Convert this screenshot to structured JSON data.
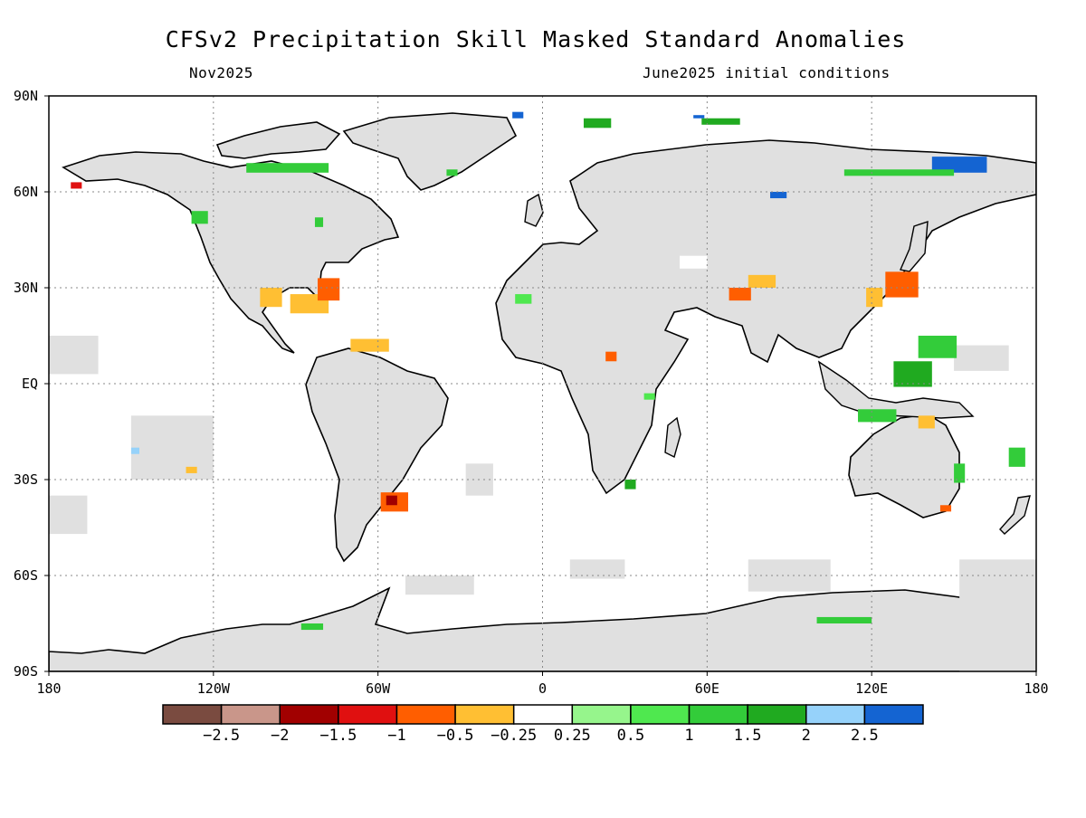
{
  "title": "CFSv2 Precipitation Skill Masked Standard Anomalies",
  "valid_label": "Nov2025",
  "init_label": "June2025 initial conditions",
  "map": {
    "lon_range": [
      -180,
      180
    ],
    "lat_range": [
      -90,
      90
    ],
    "x_ticks": [
      {
        "value": -180,
        "label": "180"
      },
      {
        "value": -120,
        "label": "120W"
      },
      {
        "value": -60,
        "label": "60W"
      },
      {
        "value": 0,
        "label": "0"
      },
      {
        "value": 60,
        "label": "60E"
      },
      {
        "value": 120,
        "label": "120E"
      },
      {
        "value": 180,
        "label": "180"
      }
    ],
    "y_ticks": [
      {
        "value": 90,
        "label": "90N"
      },
      {
        "value": 60,
        "label": "60N"
      },
      {
        "value": 30,
        "label": "30N"
      },
      {
        "value": 0,
        "label": "EQ"
      },
      {
        "value": -30,
        "label": "30S"
      },
      {
        "value": -60,
        "label": "60S"
      },
      {
        "value": -90,
        "label": "90S"
      }
    ],
    "grid": true,
    "masked_color": "#e0e0e0",
    "coastline_color": "#000000"
  },
  "colorbar": {
    "colors": [
      "#7a4b40",
      "#c9968a",
      "#a10000",
      "#e01010",
      "#ff5e00",
      "#ffbf33",
      "#ffffff",
      "#96f58c",
      "#4fe84f",
      "#33cc3a",
      "#20aa20",
      "#96d2fa",
      "#1464d2"
    ],
    "labels": [
      "-2.5",
      "-2",
      "-1.5",
      "-1",
      "-0.5",
      "-0.25",
      "0.25",
      "0.5",
      "1",
      "1.5",
      "2",
      "2.5"
    ]
  },
  "anomalies": [
    {
      "lon": -92,
      "lat": 28,
      "w": 14,
      "h": 6,
      "value": -0.5
    },
    {
      "lon": -82,
      "lat": 33,
      "w": 8,
      "h": 7,
      "value": -1.0
    },
    {
      "lon": -103,
      "lat": 30,
      "w": 8,
      "h": 6,
      "value": -0.5
    },
    {
      "lon": -70,
      "lat": 14,
      "w": 14,
      "h": 4,
      "value": -0.5
    },
    {
      "lon": -59,
      "lat": -34,
      "w": 10,
      "h": 6,
      "value": -1.0
    },
    {
      "lon": -57,
      "lat": -35,
      "w": 4,
      "h": 3,
      "value": -2.0
    },
    {
      "lon": -172,
      "lat": 63,
      "w": 4,
      "h": 2,
      "value": -1.5
    },
    {
      "lon": -130,
      "lat": -26,
      "w": 4,
      "h": 2,
      "value": -0.5
    },
    {
      "lon": -128,
      "lat": 54,
      "w": 6,
      "h": 4,
      "value": 1.0
    },
    {
      "lon": -108,
      "lat": 69,
      "w": 30,
      "h": 3,
      "value": 1.0
    },
    {
      "lon": -83,
      "lat": 52,
      "w": 3,
      "h": 3,
      "value": 1.0
    },
    {
      "lon": 15,
      "lat": 83,
      "w": 10,
      "h": 3,
      "value": 1.5
    },
    {
      "lon": 58,
      "lat": 83,
      "w": 14,
      "h": 2,
      "value": 1.5
    },
    {
      "lon": 55,
      "lat": 84,
      "w": 4,
      "h": 1,
      "value": 2.5
    },
    {
      "lon": 142,
      "lat": 71,
      "w": 20,
      "h": 5,
      "value": 2.5
    },
    {
      "lon": 83,
      "lat": 60,
      "w": 6,
      "h": 2,
      "value": 2.5
    },
    {
      "lon": -11,
      "lat": 85,
      "w": 4,
      "h": 2,
      "value": 2.5
    },
    {
      "lon": -35,
      "lat": 67,
      "w": 4,
      "h": 2,
      "value": 1.0
    },
    {
      "lon": 125,
      "lat": 35,
      "w": 12,
      "h": 8,
      "value": -1.0
    },
    {
      "lon": 118,
      "lat": 30,
      "w": 6,
      "h": 6,
      "value": -0.5
    },
    {
      "lon": 75,
      "lat": 34,
      "w": 10,
      "h": 4,
      "value": -0.5
    },
    {
      "lon": 68,
      "lat": 30,
      "w": 8,
      "h": 4,
      "value": -1.0
    },
    {
      "lon": 50,
      "lat": 40,
      "w": 10,
      "h": 4,
      "value": -0.25
    },
    {
      "lon": 23,
      "lat": 10,
      "w": 4,
      "h": 3,
      "value": -1.0
    },
    {
      "lon": 137,
      "lat": 15,
      "w": 14,
      "h": 7,
      "value": 1.0
    },
    {
      "lon": 128,
      "lat": 7,
      "w": 14,
      "h": 8,
      "value": 1.5
    },
    {
      "lon": 115,
      "lat": -8,
      "w": 14,
      "h": 4,
      "value": 1.0
    },
    {
      "lon": 137,
      "lat": -10,
      "w": 6,
      "h": 4,
      "value": -0.5
    },
    {
      "lon": 150,
      "lat": -25,
      "w": 4,
      "h": 6,
      "value": 1.0
    },
    {
      "lon": 170,
      "lat": -20,
      "w": 6,
      "h": 6,
      "value": 1.0
    },
    {
      "lon": 30,
      "lat": -30,
      "w": 4,
      "h": 3,
      "value": 1.5
    },
    {
      "lon": 37,
      "lat": -3,
      "w": 4,
      "h": 2,
      "value": 0.5
    },
    {
      "lon": -10,
      "lat": 28,
      "w": 6,
      "h": 3,
      "value": 0.5
    },
    {
      "lon": 110,
      "lat": 67,
      "w": 40,
      "h": 2,
      "value": 1.0
    },
    {
      "lon": 100,
      "lat": -73,
      "w": 20,
      "h": 2,
      "value": 1.0
    },
    {
      "lon": -88,
      "lat": -75,
      "w": 8,
      "h": 2,
      "value": 1.0
    },
    {
      "lon": 145,
      "lat": -38,
      "w": 4,
      "h": 2,
      "value": -1.0
    },
    {
      "lon": -150,
      "lat": -20,
      "w": 3,
      "h": 2,
      "value": 2.0
    }
  ],
  "gray_areas": [
    {
      "lon": -180,
      "lat": 15,
      "w": 18,
      "h": 12
    },
    {
      "lon": -150,
      "lat": -10,
      "w": 30,
      "h": 20
    },
    {
      "lon": -180,
      "lat": -35,
      "w": 14,
      "h": 12
    },
    {
      "lon": -28,
      "lat": -25,
      "w": 10,
      "h": 10
    },
    {
      "lon": 152,
      "lat": -55,
      "w": 28,
      "h": 40
    },
    {
      "lon": 150,
      "lat": 12,
      "w": 20,
      "h": 8
    },
    {
      "lon": 10,
      "lat": -55,
      "w": 20,
      "h": 6
    },
    {
      "lon": 75,
      "lat": -55,
      "w": 30,
      "h": 10
    },
    {
      "lon": -50,
      "lat": -60,
      "w": 25,
      "h": 6
    }
  ]
}
